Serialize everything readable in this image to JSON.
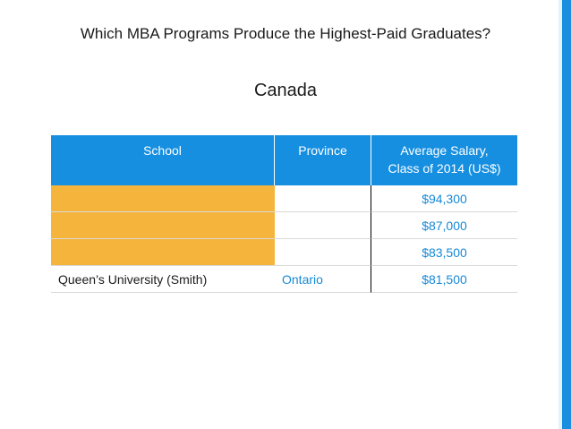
{
  "title": "Which MBA Programs Produce the Highest-Paid Graduates?",
  "subtitle": "Canada",
  "colors": {
    "header_bg": "#168fe0",
    "highlight": "#f5b53d",
    "accent": "#1a8fe0",
    "text_blue": "#1789d6"
  },
  "table": {
    "headers": [
      "School",
      "Province",
      "Average Salary,\nClass of 2014 (US$)"
    ],
    "rows": [
      {
        "school": "",
        "province": "",
        "salary": "$94,300",
        "highlight": true
      },
      {
        "school": "",
        "province": "",
        "salary": "$87,000",
        "highlight": true
      },
      {
        "school": "",
        "province": "",
        "salary": "$83,500",
        "highlight": true
      },
      {
        "school": "Queen’s University (Smith)",
        "province": "Ontario",
        "salary": "$81,500",
        "highlight": false
      }
    ]
  }
}
